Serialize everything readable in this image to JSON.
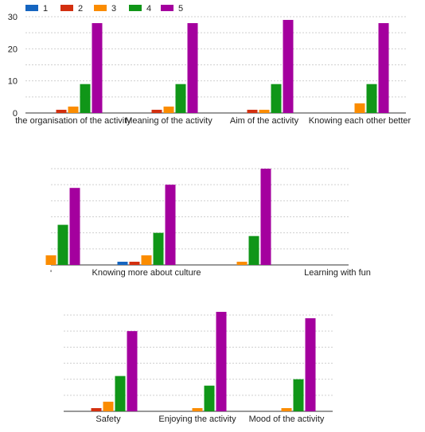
{
  "chart_data": [
    {
      "type": "bar",
      "legend": {
        "position": "top-left"
      },
      "ylim": [
        0,
        30
      ],
      "yticks": [
        0,
        10,
        20,
        30
      ],
      "grid": true,
      "categories": [
        "the organisation of the activity",
        "Meaning of the activity",
        "Aim of the activity",
        "Knowing each other better"
      ],
      "series": [
        {
          "name": "1",
          "color": "#1565c0",
          "values": [
            0,
            0,
            0,
            0
          ]
        },
        {
          "name": "2",
          "color": "#d32f0f",
          "values": [
            1,
            1,
            1,
            0
          ]
        },
        {
          "name": "3",
          "color": "#fb8c00",
          "values": [
            2,
            2,
            1,
            3
          ]
        },
        {
          "name": "4",
          "color": "#109618",
          "values": [
            9,
            9,
            9,
            9
          ]
        },
        {
          "name": "5",
          "color": "#a4009e",
          "values": [
            28,
            28,
            29,
            28
          ]
        }
      ]
    },
    {
      "type": "bar",
      "ylim": [
        0,
        30
      ],
      "grid": true,
      "categories": [
        "",
        "Knowing more about culture",
        "",
        "Learning with fun"
      ],
      "series": [
        {
          "name": "1",
          "color": "#1565c0",
          "values": [
            0,
            1,
            0,
            0
          ]
        },
        {
          "name": "2",
          "color": "#d32f0f",
          "values": [
            0,
            1,
            0,
            0
          ]
        },
        {
          "name": "3",
          "color": "#fb8c00",
          "values": [
            3,
            3,
            1,
            0
          ]
        },
        {
          "name": "4",
          "color": "#109618",
          "values": [
            12.5,
            10,
            9,
            0
          ]
        },
        {
          "name": "5",
          "color": "#a4009e",
          "values": [
            24,
            25,
            30,
            0
          ]
        }
      ]
    },
    {
      "type": "bar",
      "ylim": [
        0,
        30
      ],
      "grid": true,
      "categories": [
        "Safety",
        "Enjoying the activity",
        "Mood of the activity"
      ],
      "series": [
        {
          "name": "1",
          "color": "#1565c0",
          "values": [
            0,
            0,
            0
          ]
        },
        {
          "name": "2",
          "color": "#d32f0f",
          "values": [
            1,
            0,
            0
          ]
        },
        {
          "name": "3",
          "color": "#fb8c00",
          "values": [
            3,
            1,
            1
          ]
        },
        {
          "name": "4",
          "color": "#109618",
          "values": [
            11,
            8,
            10
          ]
        },
        {
          "name": "5",
          "color": "#a4009e",
          "values": [
            25,
            31,
            29
          ]
        }
      ]
    }
  ],
  "stray_tick_label": "'"
}
